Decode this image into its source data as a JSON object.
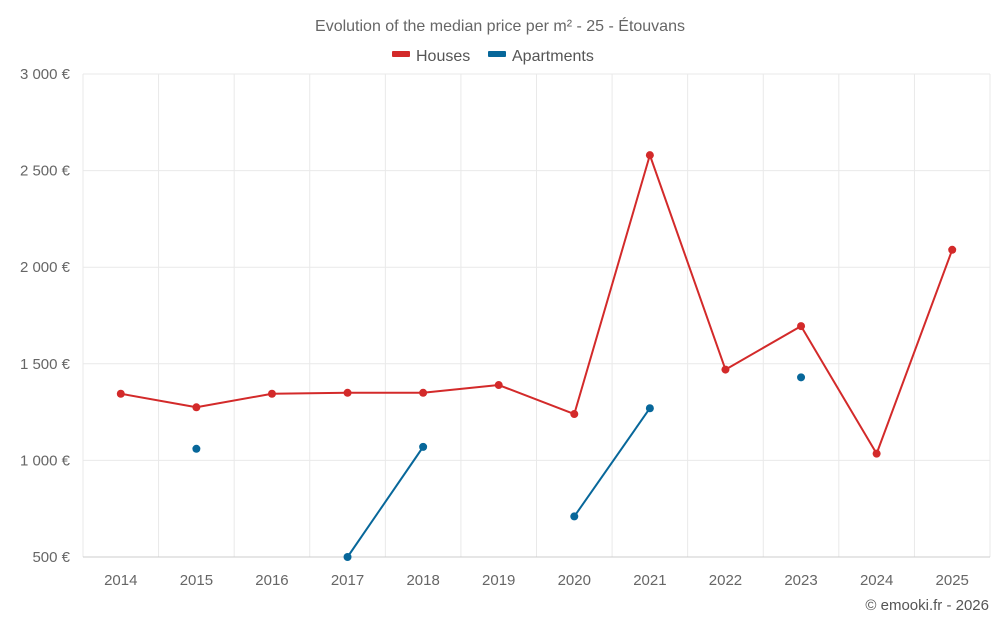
{
  "chart_data": {
    "type": "line",
    "title": "Evolution of the median price per m² - 25 - Étouvans",
    "categories": [
      "2014",
      "2015",
      "2016",
      "2017",
      "2018",
      "2019",
      "2020",
      "2021",
      "2022",
      "2023",
      "2024",
      "2025"
    ],
    "ylim": [
      500,
      3000
    ],
    "yticks": [
      500,
      1000,
      1500,
      2000,
      2500,
      3000
    ],
    "ytick_labels": [
      "500 €",
      "1 000 €",
      "1 500 €",
      "2 000 €",
      "2 500 €",
      "3 000 €"
    ],
    "grid": true,
    "legend_position": "top-center",
    "series": [
      {
        "name": "Houses",
        "color": "#d32a2a",
        "values": [
          1345,
          1275,
          1345,
          1350,
          1350,
          1390,
          1240,
          2580,
          1470,
          1695,
          1035,
          2090
        ]
      },
      {
        "name": "Apartments",
        "color": "#07679a",
        "values": [
          null,
          1060,
          null,
          500,
          1070,
          null,
          710,
          1270,
          null,
          1430,
          null,
          null
        ]
      }
    ],
    "credit": "© emooki.fr - 2026"
  }
}
